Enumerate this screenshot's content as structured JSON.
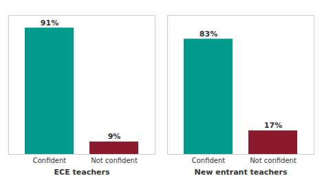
{
  "chart_data": {
    "type": "bar",
    "categories": [
      "ECE teachers",
      "New entrant teachers"
    ],
    "series": [
      {
        "name": "Confident",
        "color": "#009B8D",
        "values": [
          91,
          83
        ],
        "value_labels": [
          "91%",
          "83%"
        ]
      },
      {
        "name": "Not confident",
        "color": "#8B1A2E",
        "values": [
          9,
          17
        ],
        "value_labels": [
          "9%",
          "17%"
        ]
      }
    ],
    "ylim": [
      0,
      100
    ],
    "data_labels": true,
    "tick_labels": "x"
  }
}
